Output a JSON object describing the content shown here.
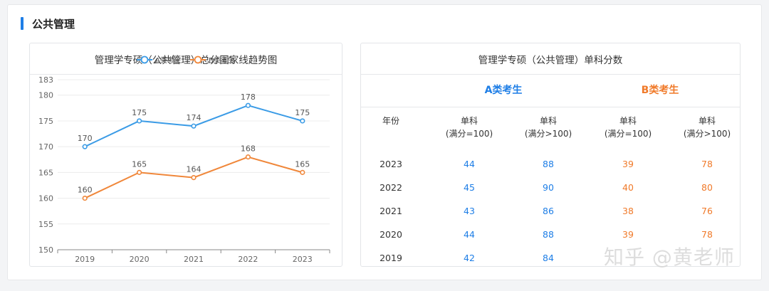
{
  "section": {
    "title": "公共管理"
  },
  "left_card": {
    "title": "管理学专硕（公共管理）总分国家线趋势图"
  },
  "right_card": {
    "title": "管理学专硕（公共管理）单科分数",
    "group_a": "A类考生",
    "group_b": "B类考生",
    "headers": {
      "year": "年份",
      "col1_line1": "单科",
      "col1_line2": "(满分=100)",
      "col2_line1": "单科",
      "col2_line2": "(满分>100)",
      "col3_line1": "单科",
      "col3_line2": "(满分=100)",
      "col4_line1": "单科",
      "col4_line2": "(满分>100)"
    },
    "rows": [
      {
        "year": "2023",
        "a1": "44",
        "a2": "88",
        "b1": "39",
        "b2": "78"
      },
      {
        "year": "2022",
        "a1": "45",
        "a2": "90",
        "b1": "40",
        "b2": "80"
      },
      {
        "year": "2021",
        "a1": "43",
        "a2": "86",
        "b1": "38",
        "b2": "76"
      },
      {
        "year": "2020",
        "a1": "44",
        "a2": "88",
        "b1": "39",
        "b2": "78"
      },
      {
        "year": "2019",
        "a1": "42",
        "a2": "84",
        "b1": "",
        "b2": ""
      }
    ]
  },
  "watermark": "知乎 @黄老师",
  "colors": {
    "series_a": "#3a9be6",
    "series_b": "#f0873a",
    "accent": "#1e7ee6"
  },
  "chart_data": {
    "type": "line",
    "title": "管理学专硕（公共管理）总分国家线趋势图",
    "x": [
      "2019",
      "2020",
      "2021",
      "2022",
      "2023"
    ],
    "ylim": [
      150,
      183
    ],
    "yticks": [
      150,
      155,
      160,
      165,
      170,
      175,
      180,
      183
    ],
    "grid": true,
    "legend": "top-center",
    "series": [
      {
        "name": "A类考生",
        "values": [
          170,
          175,
          174,
          178,
          175
        ]
      },
      {
        "name": "B类考生",
        "values": [
          160,
          165,
          164,
          168,
          165
        ]
      }
    ]
  }
}
